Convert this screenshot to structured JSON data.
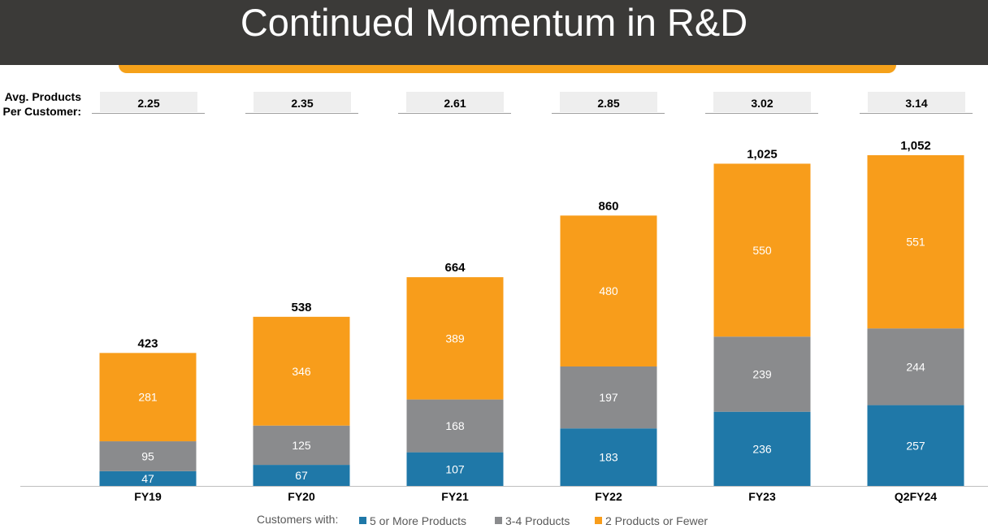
{
  "title": "Continued Momentum in R&D",
  "avg_products": {
    "label_line1": "Avg. Products",
    "label_line2": "Per Customer:",
    "values": [
      "2.25",
      "2.35",
      "2.61",
      "2.85",
      "3.02",
      "3.14"
    ]
  },
  "legend": {
    "title": "Customers with:",
    "items": [
      {
        "name": "5 or More Products",
        "color": "#1f78a8"
      },
      {
        "name": "3-4 Products",
        "color": "#8a8b8d"
      },
      {
        "name": "2 Products or Fewer",
        "color": "#f89d1b"
      }
    ]
  },
  "chart_data": {
    "type": "bar",
    "stacked": true,
    "categories": [
      "FY19",
      "FY20",
      "FY21",
      "FY22",
      "FY23",
      "Q2FY24"
    ],
    "series": [
      {
        "name": "5 or More Products",
        "values": [
          47,
          67,
          107,
          183,
          236,
          257
        ],
        "color": "#1f78a8"
      },
      {
        "name": "3-4 Products",
        "values": [
          95,
          125,
          168,
          197,
          239,
          244
        ],
        "color": "#8a8b8d"
      },
      {
        "name": "2 Products or Fewer",
        "values": [
          281,
          346,
          389,
          480,
          550,
          551
        ],
        "color": "#f89d1b"
      }
    ],
    "totals": [
      "423",
      "538",
      "664",
      "860",
      "1,025",
      "1,052"
    ],
    "ylim": [
      0,
      1052
    ],
    "grid": false,
    "legend_position": "bottom"
  }
}
